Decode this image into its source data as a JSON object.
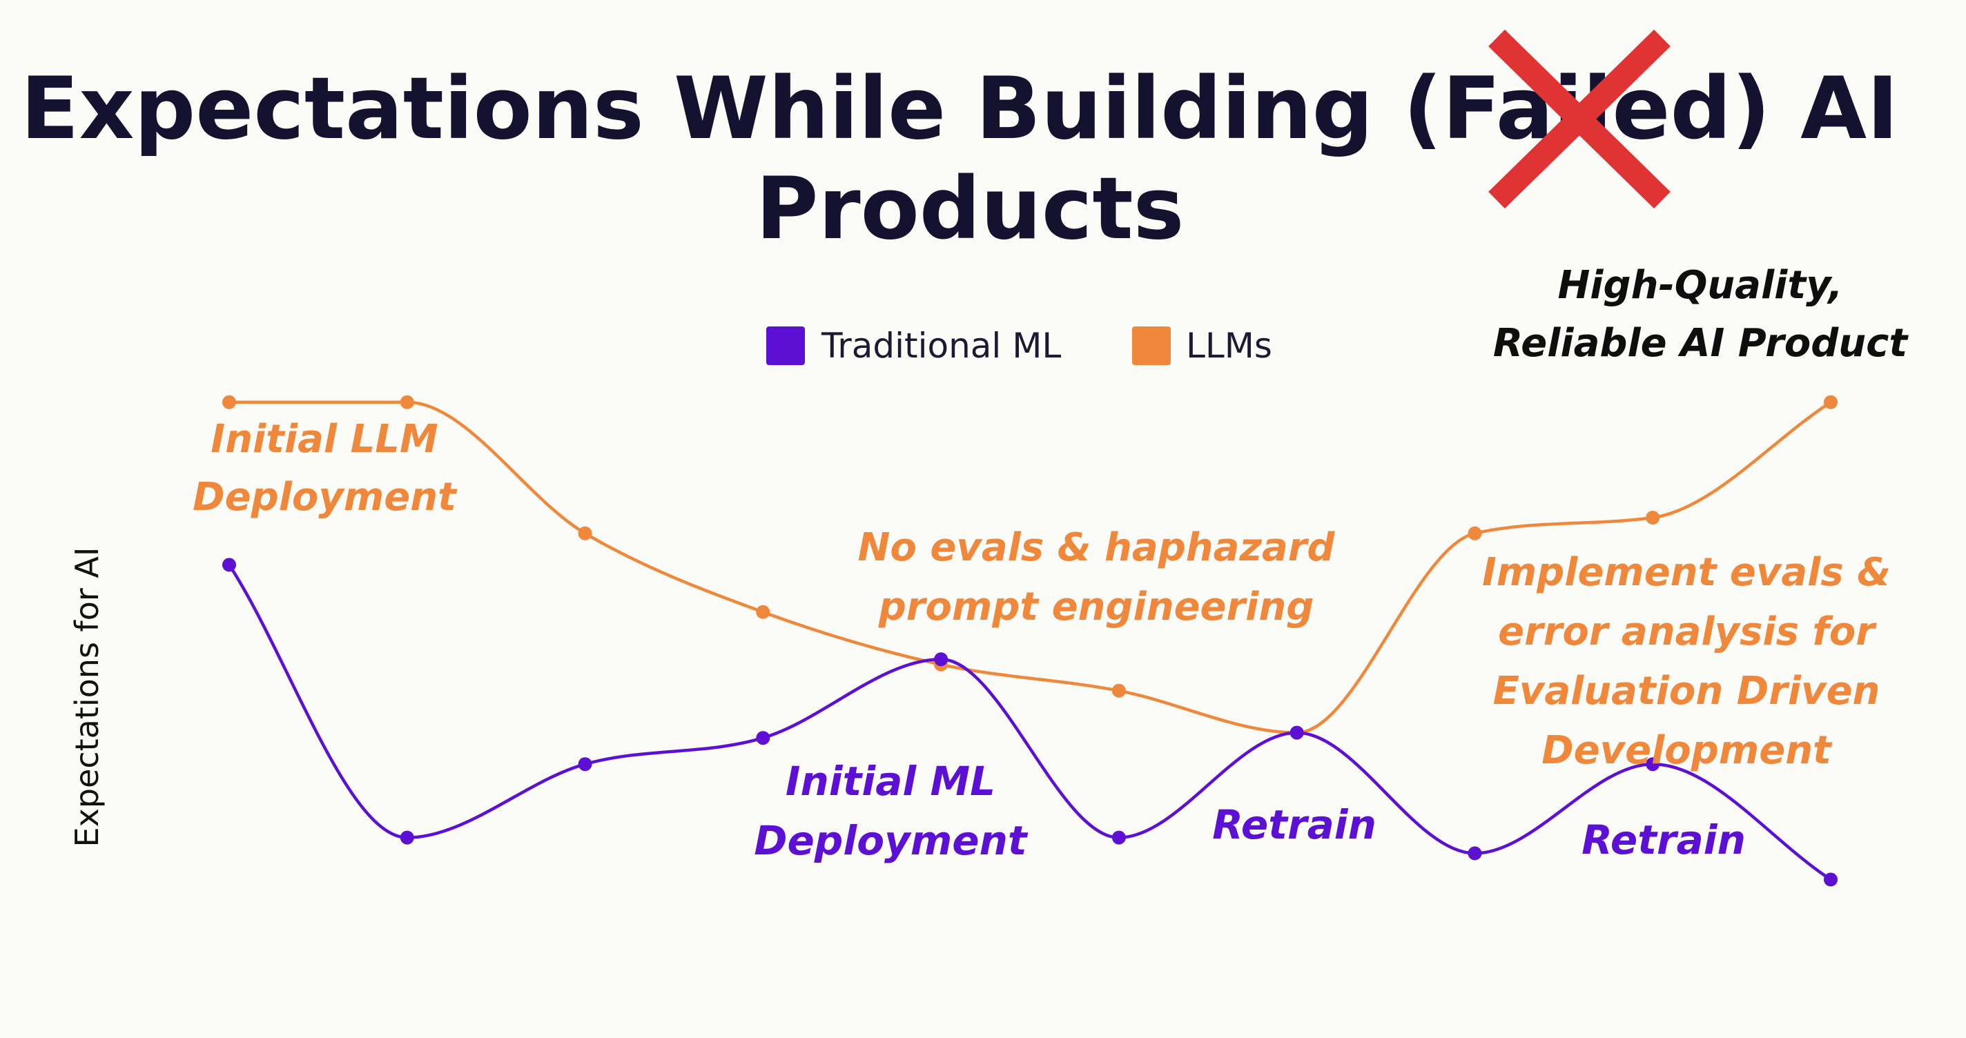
{
  "chart_data": {
    "type": "line",
    "title": "Expectations While Building (Failed) AI Products",
    "title_lines": [
      "Expectations While Building (Failed) AI",
      "Products"
    ],
    "title_strike": {
      "word": "Failed",
      "mark": "red-x"
    },
    "xlabel": "",
    "ylabel": "Expectations for AI",
    "x": [
      1,
      2,
      3,
      4,
      5,
      6,
      7,
      8,
      9,
      10
    ],
    "xlim": [
      1,
      10
    ],
    "ylim": [
      0,
      100
    ],
    "grid": false,
    "legend_position": "top-center",
    "series": [
      {
        "name": "Traditional ML",
        "color": "#5b10d4",
        "values": [
          66,
          14,
          28,
          33,
          48,
          14,
          34,
          11,
          28,
          6
        ]
      },
      {
        "name": "LLMs",
        "color": "#f0883c",
        "values": [
          97,
          97,
          72,
          57,
          47,
          42,
          34,
          72,
          75,
          97
        ]
      }
    ],
    "annotations": [
      {
        "series": "LLMs",
        "text": "Initial LLM\nDeployment"
      },
      {
        "series": "LLMs",
        "text": "No evals & haphazard\nprompt engineering"
      },
      {
        "series": "LLMs",
        "text": "Implement evals &\nerror analysis for\nEvaluation Driven\nDevelopment"
      },
      {
        "series": "Traditional ML",
        "text": "Initial ML\nDeployment"
      },
      {
        "series": "Traditional ML",
        "text": "Retrain"
      },
      {
        "series": "Traditional ML",
        "text": "Retrain"
      },
      {
        "series": "goal",
        "text": "High-Quality,\nReliable AI Product"
      }
    ]
  },
  "colors": {
    "background": "#fbfbf8",
    "title": "#14122e",
    "strike_x": "#e03434",
    "goal_text": "#0e0e0e"
  }
}
